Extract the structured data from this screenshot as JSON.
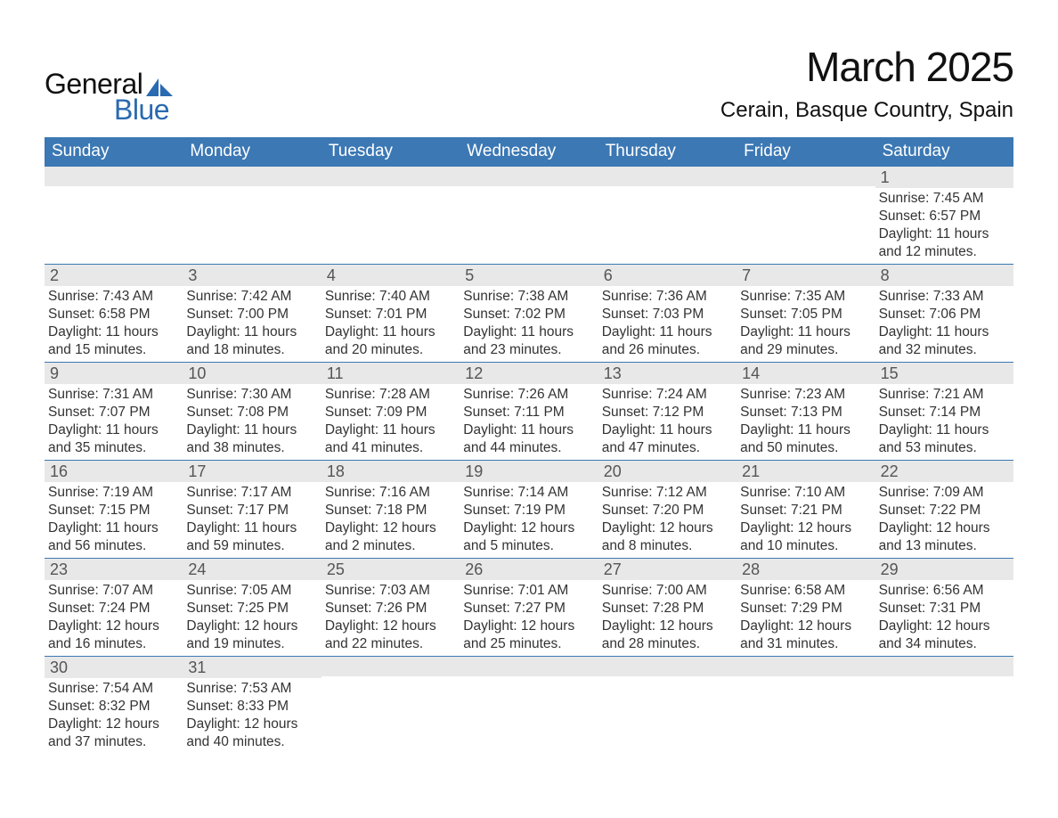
{
  "logo": {
    "text1": "General",
    "text2": "Blue",
    "shape_color": "#2a6ab0"
  },
  "title": "March 2025",
  "location": "Cerain, Basque Country, Spain",
  "colors": {
    "header_blue": "#3c78b4",
    "daynum_bg": "#e8e8e8",
    "row_sep": "#3c78b4",
    "background": "#ffffff",
    "text": "#333333"
  },
  "weekdays": [
    "Sunday",
    "Monday",
    "Tuesday",
    "Wednesday",
    "Thursday",
    "Friday",
    "Saturday"
  ],
  "weeks": [
    [
      {
        "n": "",
        "lines": []
      },
      {
        "n": "",
        "lines": []
      },
      {
        "n": "",
        "lines": []
      },
      {
        "n": "",
        "lines": []
      },
      {
        "n": "",
        "lines": []
      },
      {
        "n": "",
        "lines": []
      },
      {
        "n": "1",
        "lines": [
          "Sunrise: 7:45 AM",
          "Sunset: 6:57 PM",
          "Daylight: 11 hours",
          "and 12 minutes."
        ]
      }
    ],
    [
      {
        "n": "2",
        "lines": [
          "Sunrise: 7:43 AM",
          "Sunset: 6:58 PM",
          "Daylight: 11 hours",
          "and 15 minutes."
        ]
      },
      {
        "n": "3",
        "lines": [
          "Sunrise: 7:42 AM",
          "Sunset: 7:00 PM",
          "Daylight: 11 hours",
          "and 18 minutes."
        ]
      },
      {
        "n": "4",
        "lines": [
          "Sunrise: 7:40 AM",
          "Sunset: 7:01 PM",
          "Daylight: 11 hours",
          "and 20 minutes."
        ]
      },
      {
        "n": "5",
        "lines": [
          "Sunrise: 7:38 AM",
          "Sunset: 7:02 PM",
          "Daylight: 11 hours",
          "and 23 minutes."
        ]
      },
      {
        "n": "6",
        "lines": [
          "Sunrise: 7:36 AM",
          "Sunset: 7:03 PM",
          "Daylight: 11 hours",
          "and 26 minutes."
        ]
      },
      {
        "n": "7",
        "lines": [
          "Sunrise: 7:35 AM",
          "Sunset: 7:05 PM",
          "Daylight: 11 hours",
          "and 29 minutes."
        ]
      },
      {
        "n": "8",
        "lines": [
          "Sunrise: 7:33 AM",
          "Sunset: 7:06 PM",
          "Daylight: 11 hours",
          "and 32 minutes."
        ]
      }
    ],
    [
      {
        "n": "9",
        "lines": [
          "Sunrise: 7:31 AM",
          "Sunset: 7:07 PM",
          "Daylight: 11 hours",
          "and 35 minutes."
        ]
      },
      {
        "n": "10",
        "lines": [
          "Sunrise: 7:30 AM",
          "Sunset: 7:08 PM",
          "Daylight: 11 hours",
          "and 38 minutes."
        ]
      },
      {
        "n": "11",
        "lines": [
          "Sunrise: 7:28 AM",
          "Sunset: 7:09 PM",
          "Daylight: 11 hours",
          "and 41 minutes."
        ]
      },
      {
        "n": "12",
        "lines": [
          "Sunrise: 7:26 AM",
          "Sunset: 7:11 PM",
          "Daylight: 11 hours",
          "and 44 minutes."
        ]
      },
      {
        "n": "13",
        "lines": [
          "Sunrise: 7:24 AM",
          "Sunset: 7:12 PM",
          "Daylight: 11 hours",
          "and 47 minutes."
        ]
      },
      {
        "n": "14",
        "lines": [
          "Sunrise: 7:23 AM",
          "Sunset: 7:13 PM",
          "Daylight: 11 hours",
          "and 50 minutes."
        ]
      },
      {
        "n": "15",
        "lines": [
          "Sunrise: 7:21 AM",
          "Sunset: 7:14 PM",
          "Daylight: 11 hours",
          "and 53 minutes."
        ]
      }
    ],
    [
      {
        "n": "16",
        "lines": [
          "Sunrise: 7:19 AM",
          "Sunset: 7:15 PM",
          "Daylight: 11 hours",
          "and 56 minutes."
        ]
      },
      {
        "n": "17",
        "lines": [
          "Sunrise: 7:17 AM",
          "Sunset: 7:17 PM",
          "Daylight: 11 hours",
          "and 59 minutes."
        ]
      },
      {
        "n": "18",
        "lines": [
          "Sunrise: 7:16 AM",
          "Sunset: 7:18 PM",
          "Daylight: 12 hours",
          "and 2 minutes."
        ]
      },
      {
        "n": "19",
        "lines": [
          "Sunrise: 7:14 AM",
          "Sunset: 7:19 PM",
          "Daylight: 12 hours",
          "and 5 minutes."
        ]
      },
      {
        "n": "20",
        "lines": [
          "Sunrise: 7:12 AM",
          "Sunset: 7:20 PM",
          "Daylight: 12 hours",
          "and 8 minutes."
        ]
      },
      {
        "n": "21",
        "lines": [
          "Sunrise: 7:10 AM",
          "Sunset: 7:21 PM",
          "Daylight: 12 hours",
          "and 10 minutes."
        ]
      },
      {
        "n": "22",
        "lines": [
          "Sunrise: 7:09 AM",
          "Sunset: 7:22 PM",
          "Daylight: 12 hours",
          "and 13 minutes."
        ]
      }
    ],
    [
      {
        "n": "23",
        "lines": [
          "Sunrise: 7:07 AM",
          "Sunset: 7:24 PM",
          "Daylight: 12 hours",
          "and 16 minutes."
        ]
      },
      {
        "n": "24",
        "lines": [
          "Sunrise: 7:05 AM",
          "Sunset: 7:25 PM",
          "Daylight: 12 hours",
          "and 19 minutes."
        ]
      },
      {
        "n": "25",
        "lines": [
          "Sunrise: 7:03 AM",
          "Sunset: 7:26 PM",
          "Daylight: 12 hours",
          "and 22 minutes."
        ]
      },
      {
        "n": "26",
        "lines": [
          "Sunrise: 7:01 AM",
          "Sunset: 7:27 PM",
          "Daylight: 12 hours",
          "and 25 minutes."
        ]
      },
      {
        "n": "27",
        "lines": [
          "Sunrise: 7:00 AM",
          "Sunset: 7:28 PM",
          "Daylight: 12 hours",
          "and 28 minutes."
        ]
      },
      {
        "n": "28",
        "lines": [
          "Sunrise: 6:58 AM",
          "Sunset: 7:29 PM",
          "Daylight: 12 hours",
          "and 31 minutes."
        ]
      },
      {
        "n": "29",
        "lines": [
          "Sunrise: 6:56 AM",
          "Sunset: 7:31 PM",
          "Daylight: 12 hours",
          "and 34 minutes."
        ]
      }
    ],
    [
      {
        "n": "30",
        "lines": [
          "Sunrise: 7:54 AM",
          "Sunset: 8:32 PM",
          "Daylight: 12 hours",
          "and 37 minutes."
        ]
      },
      {
        "n": "31",
        "lines": [
          "Sunrise: 7:53 AM",
          "Sunset: 8:33 PM",
          "Daylight: 12 hours",
          "and 40 minutes."
        ]
      },
      {
        "n": "",
        "lines": []
      },
      {
        "n": "",
        "lines": []
      },
      {
        "n": "",
        "lines": []
      },
      {
        "n": "",
        "lines": []
      },
      {
        "n": "",
        "lines": []
      }
    ]
  ]
}
